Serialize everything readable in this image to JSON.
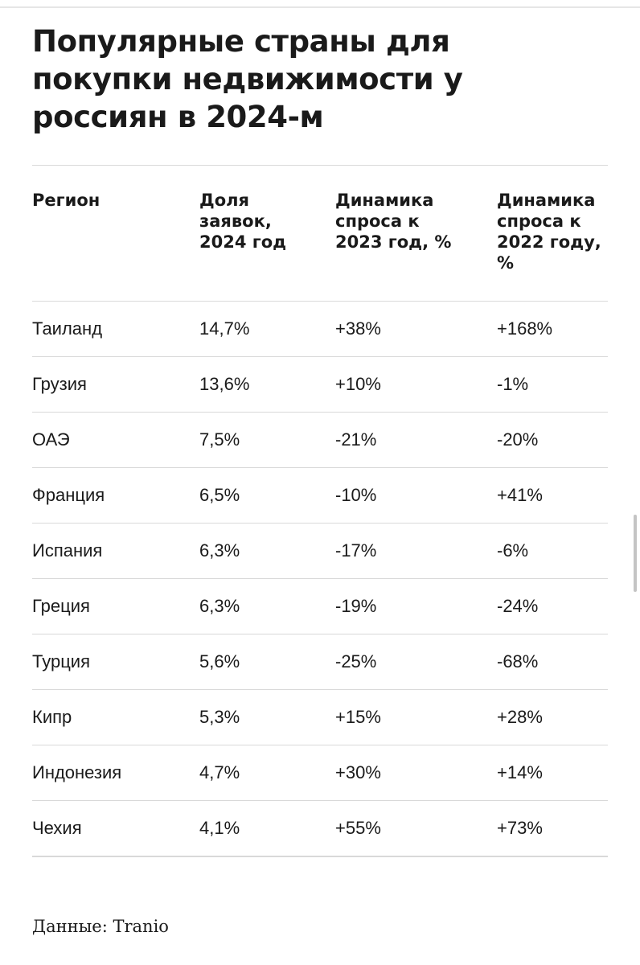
{
  "title": "Популярные страны для покупки недвижимости у россиян в 2024-м",
  "table": {
    "headers": [
      "Регион",
      "Доля заявок, 2024 год",
      "Динамика спроса к 2023 год, %",
      "Динамика спроса к 2022 году, %"
    ],
    "rows": [
      [
        "Таиланд",
        "14,7%",
        "+38%",
        "+168%"
      ],
      [
        "Грузия",
        "13,6%",
        "+10%",
        "-1%"
      ],
      [
        "ОАЭ",
        "7,5%",
        "-21%",
        "-20%"
      ],
      [
        "Франция",
        "6,5%",
        "-10%",
        "+41%"
      ],
      [
        "Испания",
        "6,3%",
        "-17%",
        "-6%"
      ],
      [
        "Греция",
        "6,3%",
        "-19%",
        "-24%"
      ],
      [
        "Турция",
        "5,6%",
        "-25%",
        "-68%"
      ],
      [
        "Кипр",
        "5,3%",
        "+15%",
        "+28%"
      ],
      [
        "Индонезия",
        "4,7%",
        "+30%",
        "+14%"
      ],
      [
        "Чехия",
        "4,1%",
        "+55%",
        "+73%"
      ]
    ]
  },
  "source": "Данные: Tranio"
}
